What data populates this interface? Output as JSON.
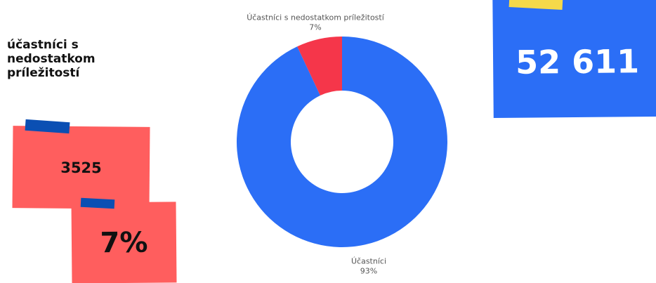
{
  "heading": "účastníci s nedostatkom príležitostí",
  "cards": [
    "3525",
    "7%",
    "52 611"
  ],
  "chart_data": {
    "type": "donut",
    "categories": [
      "Účastníci s nedostatkom príležitostí",
      "Účastníci"
    ],
    "values": [
      7,
      93
    ],
    "value_labels": [
      "7%",
      "93%"
    ],
    "colors": [
      "#f5364a",
      "#2b6ef6"
    ]
  }
}
